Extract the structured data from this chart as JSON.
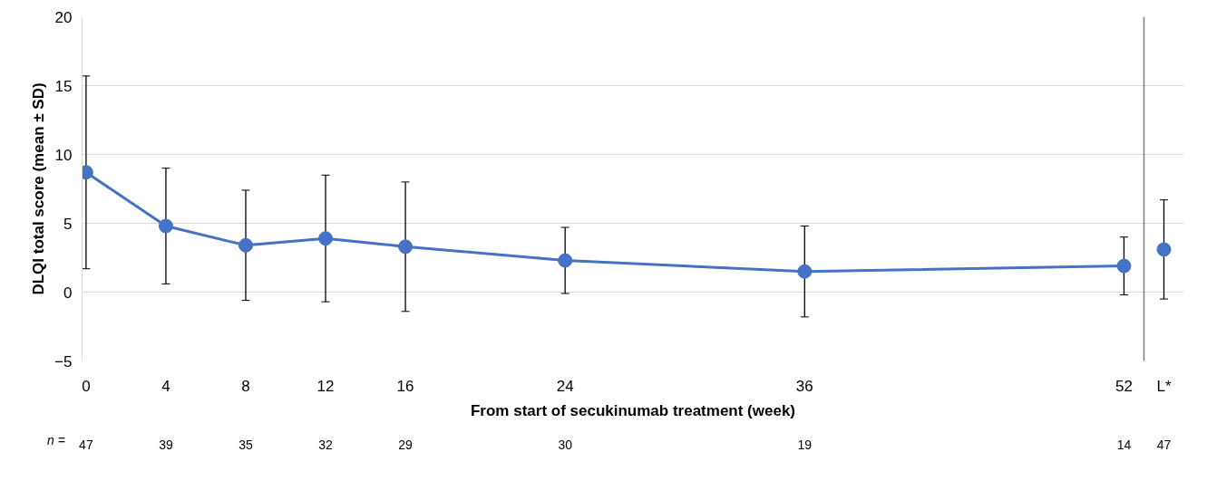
{
  "chart_data": {
    "type": "line",
    "xlabel": "From start of secukinumab treatment (week)",
    "ylabel": "DLQI total score (mean ± SD)",
    "series": [
      {
        "color": "#4472c4",
        "x": [
          0,
          4,
          8,
          12,
          16,
          24,
          36,
          52
        ],
        "values": [
          8.7,
          4.8,
          3.4,
          3.9,
          3.3,
          2.3,
          1.5,
          1.9
        ],
        "errors": [
          7.0,
          4.2,
          4.0,
          4.6,
          4.7,
          2.4,
          3.3,
          2.1
        ]
      },
      {
        "type": "scatter",
        "color": "#4472c4",
        "x": [
          54
        ],
        "values": [
          3.1
        ],
        "errors": [
          3.6
        ]
      }
    ],
    "xlim": [
      -0.2,
      55
    ],
    "xticks": [
      0,
      4,
      8,
      12,
      16,
      24,
      36,
      52,
      {
        "value": 54,
        "label": "L*"
      }
    ],
    "ylim": [
      -5,
      20
    ],
    "yticks": [
      -5,
      0,
      5,
      10,
      15,
      20
    ],
    "grid": "y",
    "marker": "circle",
    "line_style": "solid",
    "ref_lines": [
      {
        "axis": "x",
        "value": 53,
        "color": "#7f7f7f"
      }
    ],
    "annotations": [
      "n =",
      "47",
      "39",
      "35",
      "32",
      "29",
      "30",
      "19",
      "14",
      "47"
    ]
  }
}
